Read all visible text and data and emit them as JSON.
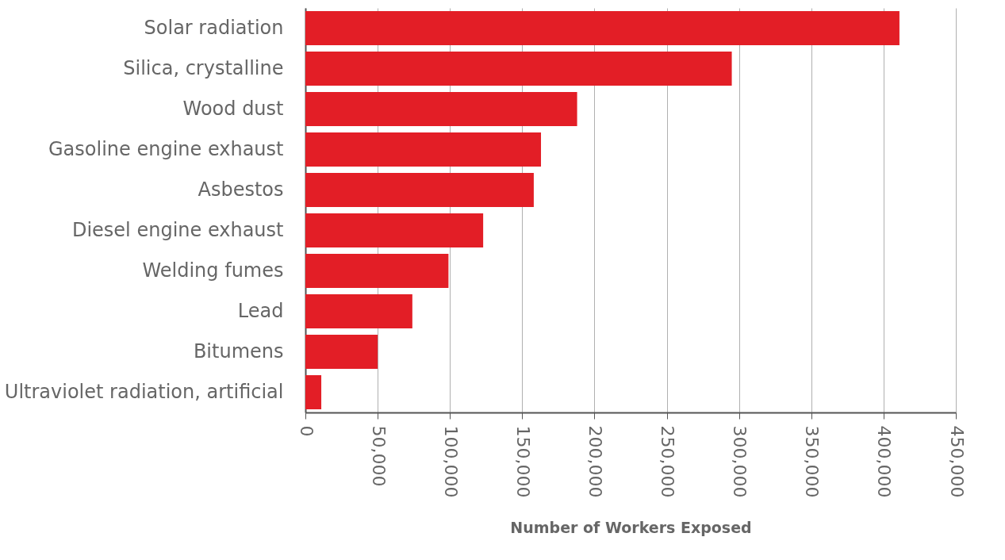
{
  "chart_data": {
    "type": "bar",
    "orientation": "horizontal",
    "xlabel": "Number of Workers Exposed",
    "categories": [
      "Solar radiation",
      "Silica, crystalline",
      "Wood dust",
      "Gasoline engine exhaust",
      "Asbestos",
      "Diesel engine exhaust",
      "Welding fumes",
      "Lead",
      "Bitumens",
      "Ultraviolet radiation, artificial"
    ],
    "values": [
      411000,
      295000,
      188000,
      163000,
      158000,
      123000,
      99000,
      74000,
      50000,
      11000
    ],
    "color": "#e31e26",
    "xlim": [
      0,
      450000
    ],
    "xticks": [
      {
        "value": 0,
        "label": "0"
      },
      {
        "value": 50000,
        "label": "50,000"
      },
      {
        "value": 100000,
        "label": "100,000"
      },
      {
        "value": 150000,
        "label": "150,000"
      },
      {
        "value": 200000,
        "label": "200,000"
      },
      {
        "value": 250000,
        "label": "250,000"
      },
      {
        "value": 300000,
        "label": "300,000"
      },
      {
        "value": 350000,
        "label": "350,000"
      },
      {
        "value": 400000,
        "label": "400,000"
      },
      {
        "value": 450000,
        "label": "450,000"
      }
    ],
    "grid": "x"
  }
}
